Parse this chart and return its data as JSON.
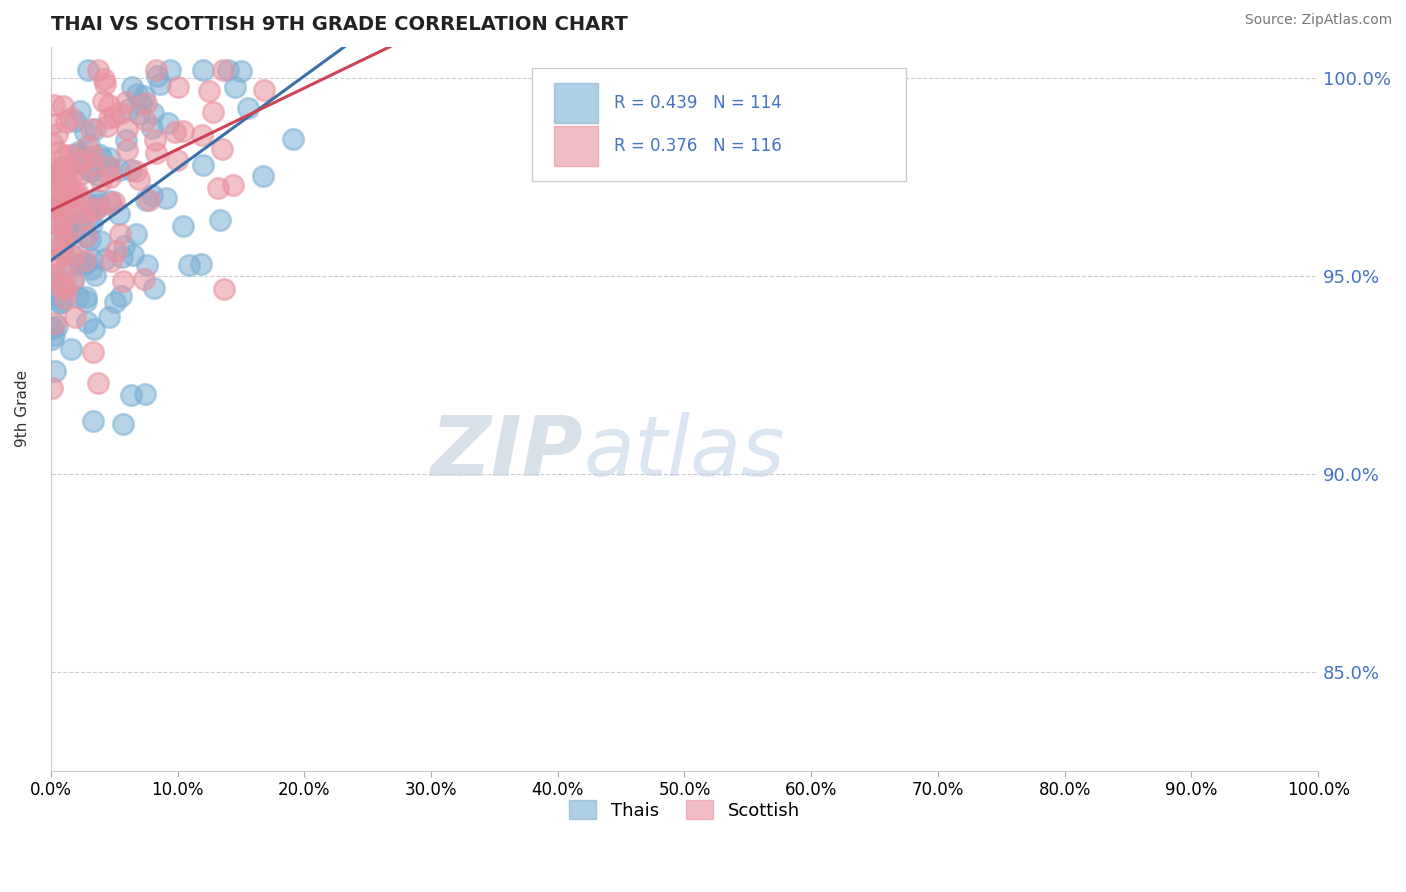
{
  "title": "THAI VS SCOTTISH 9TH GRADE CORRELATION CHART",
  "source": "Source: ZipAtlas.com",
  "ylabel": "9th Grade",
  "xlim": [
    0.0,
    1.0
  ],
  "ylim": [
    0.825,
    1.008
  ],
  "yticks": [
    0.85,
    0.9,
    0.95,
    1.0
  ],
  "ytick_labels": [
    "85.0%",
    "90.0%",
    "95.0%",
    "100.0%"
  ],
  "thai_color": "#7bafd4",
  "scottish_color": "#e8919e",
  "thai_line_color": "#3a6faa",
  "scottish_line_color": "#cc4455",
  "thai_r": 0.439,
  "thai_n": 114,
  "scottish_r": 0.376,
  "scottish_n": 116,
  "watermark_zip": "ZIP",
  "watermark_atlas": "atlas",
  "grid_color": "#cccccc",
  "xticks": [
    0.0,
    0.1,
    0.2,
    0.3,
    0.4,
    0.5,
    0.6,
    0.7,
    0.8,
    0.9,
    1.0
  ]
}
